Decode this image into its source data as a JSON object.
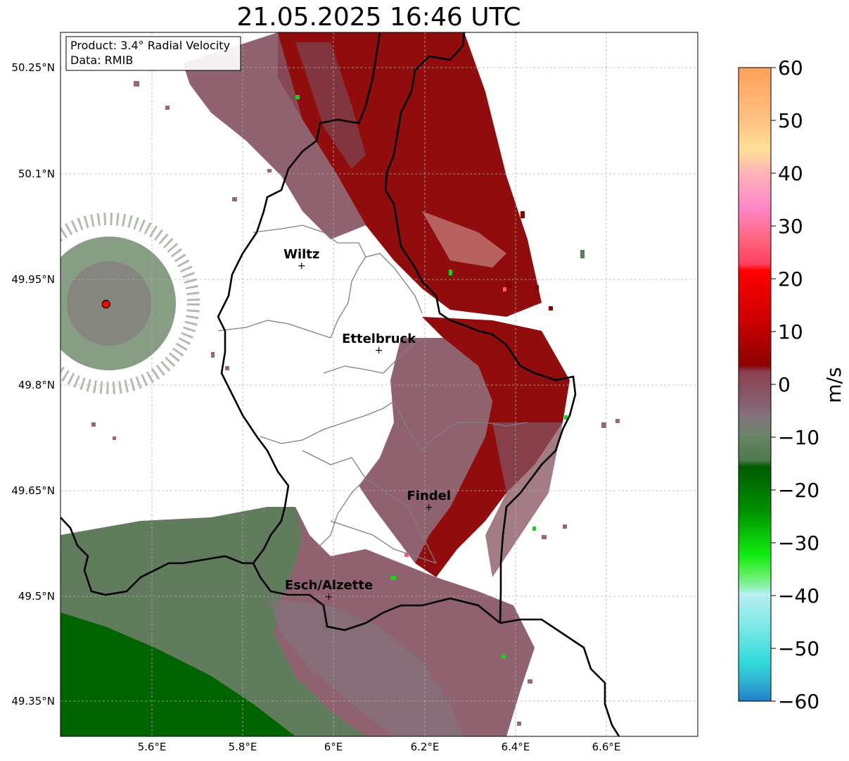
{
  "title": "21.05.2025 16:46 UTC",
  "info_box": {
    "product": "Product: 3.4° Radial Velocity",
    "data": "Data: RMIB"
  },
  "lat_ticks": [
    "50.25°N",
    "50.1°N",
    "49.95°N",
    "49.8°N",
    "49.65°N",
    "49.5°N",
    "49.35°N"
  ],
  "lon_ticks": [
    "5.6°E",
    "5.8°E",
    "6°E",
    "6.2°E",
    "6.4°E",
    "6.6°E"
  ],
  "cities": [
    {
      "name": "Wiltz",
      "lon": 5.93,
      "lat": 49.97
    },
    {
      "name": "Ettelbruck",
      "lon": 6.1,
      "lat": 49.85
    },
    {
      "name": "Findel",
      "lon": 6.21,
      "lat": 49.627
    },
    {
      "name": "Esch/Alzette",
      "lon": 5.99,
      "lat": 49.5
    }
  ],
  "radar_site": {
    "lon": 5.5,
    "lat": 49.915
  },
  "colorbar": {
    "label": "m/s",
    "ticks": [
      "60",
      "50",
      "40",
      "30",
      "20",
      "10",
      "0",
      "−10",
      "−20",
      "−30",
      "−40",
      "−50",
      "−60"
    ],
    "range": [
      -60,
      60
    ]
  },
  "colors": {
    "outbound_strong": "#8b0000",
    "outbound_weak": "#84505e",
    "near_zero": "#82727a",
    "inbound_weak": "#5f7d5c",
    "inbound_strong": "#006400"
  }
}
